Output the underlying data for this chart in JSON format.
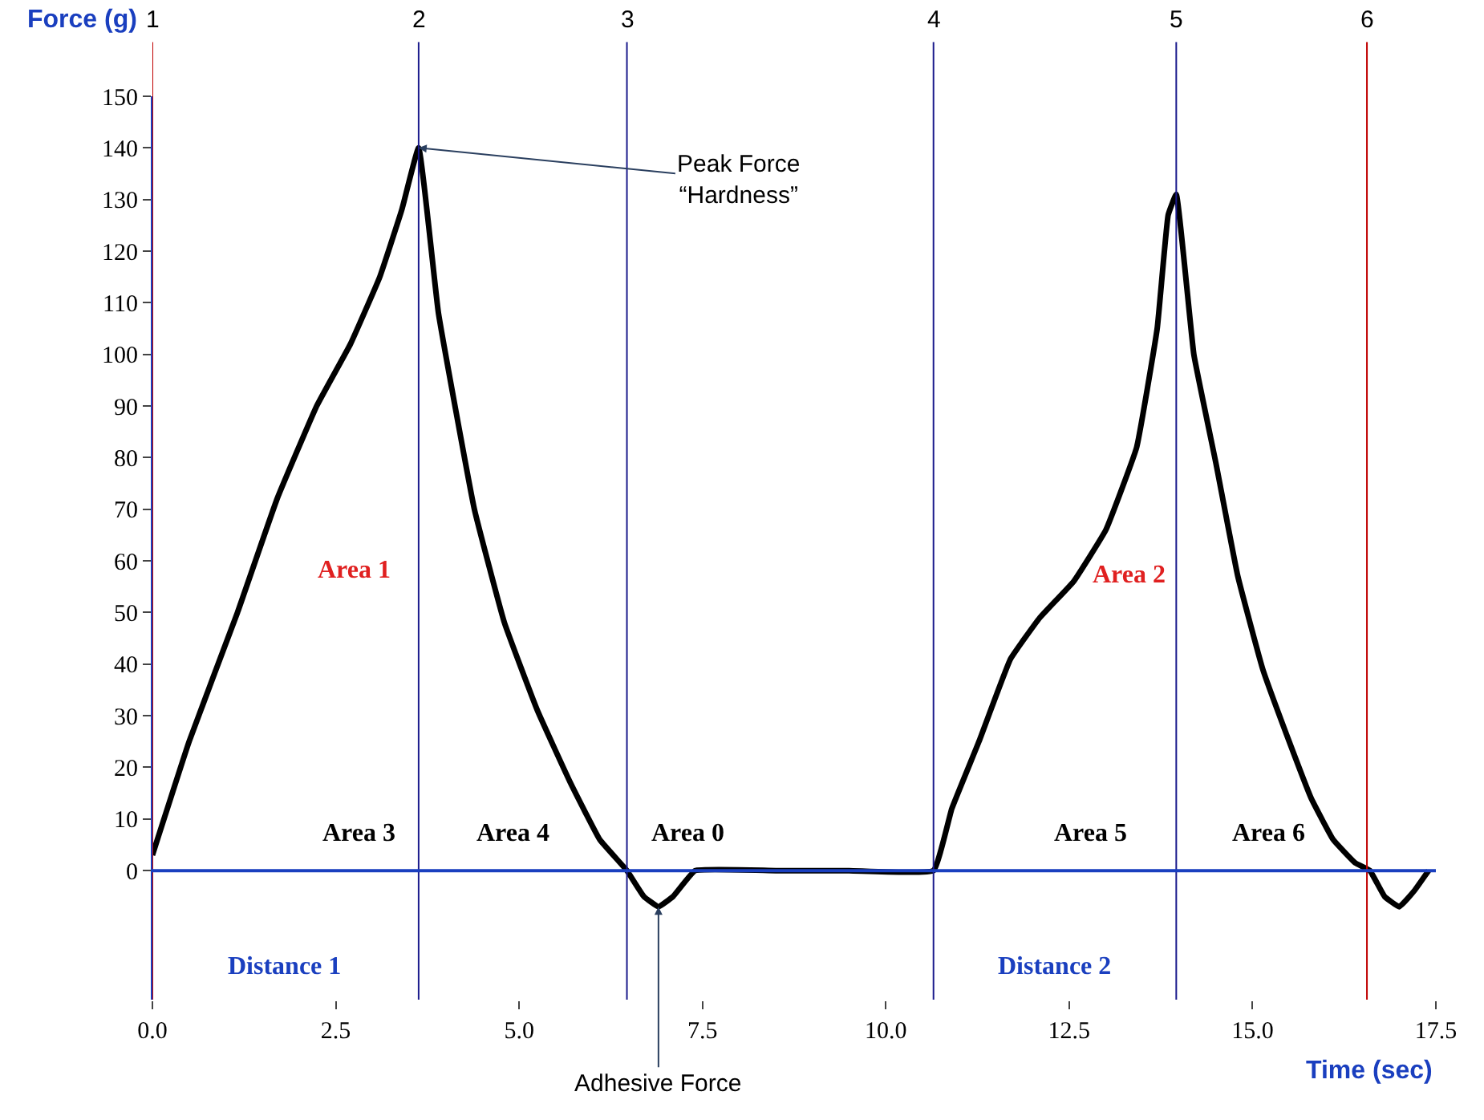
{
  "chart_data": {
    "type": "line",
    "xlabel": "Time (sec)",
    "ylabel": "Force (g)",
    "xlim": [
      0,
      17.5
    ],
    "xticks": [
      {
        "value": 0,
        "label": "0.0"
      },
      2.5,
      {
        "value": 5,
        "label": "5.0"
      },
      7.5,
      {
        "value": 10,
        "label": "10.0"
      },
      12.5,
      {
        "value": 15,
        "label": "15.0"
      },
      17.5
    ],
    "ylim": [
      -25,
      150
    ],
    "yticks": [
      0,
      10,
      20,
      30,
      40,
      50,
      60,
      70,
      80,
      90,
      100,
      110,
      120,
      130,
      140,
      150
    ],
    "marker": "none",
    "line_style": "solid",
    "series": [
      {
        "color": "#000000",
        "x": [
          0,
          0.5,
          1.16,
          1.7,
          2.24,
          2.7,
          3.1,
          3.4,
          3.63,
          3.9,
          4.39,
          4.8,
          5.25,
          5.7,
          6.1,
          6.47,
          6.7,
          6.9,
          7.1,
          7.4,
          8.5,
          9.5,
          10.65,
          10.9,
          11.27,
          11.7,
          12.1,
          12.56,
          13.0,
          13.42,
          13.7,
          13.85,
          13.96,
          14.2,
          14.5,
          14.8,
          15.14,
          15.5,
          15.8,
          16.1,
          16.4,
          16.6,
          16.8,
          17.0,
          17.2,
          17.4
        ],
        "values": [
          3,
          25,
          50,
          72,
          90,
          102,
          115,
          128,
          140,
          108,
          70,
          48,
          31,
          17,
          6,
          0,
          -5,
          -7,
          -5,
          0,
          0,
          0,
          0,
          12,
          25,
          41,
          49,
          56,
          66,
          82,
          105,
          127,
          131,
          100,
          79,
          57,
          39,
          25,
          14,
          6,
          1.5,
          0,
          -5,
          -7,
          -4,
          0
        ]
      }
    ],
    "ref_lines": [
      {
        "axis": "x",
        "value": 0,
        "color": "#c00000"
      },
      {
        "axis": "x",
        "value": 3.63,
        "color": "#1a1a8c"
      },
      {
        "axis": "x",
        "value": 6.47,
        "color": "#1a1a8c"
      },
      {
        "axis": "x",
        "value": 10.65,
        "color": "#1a1a8c"
      },
      {
        "axis": "x",
        "value": 13.96,
        "color": "#1a1a8c"
      },
      {
        "axis": "x",
        "value": 16.56,
        "color": "#c00000"
      },
      {
        "axis": "y",
        "value": 0,
        "color": "#1a3fbf"
      }
    ],
    "annotations": [
      {
        "text": "Peak Force\n“Hardness”",
        "x": 3.63,
        "y": 140
      },
      {
        "text": "Adhesive Force",
        "x": 6.9,
        "y": -7
      },
      "Area 1",
      "Area 2",
      "Area 3",
      "Area 4",
      "Area 0",
      "Area 5",
      "Area 6",
      "Distance 1",
      "Distance 2",
      "1",
      "2",
      "3",
      "4",
      "5",
      "6"
    ]
  }
}
